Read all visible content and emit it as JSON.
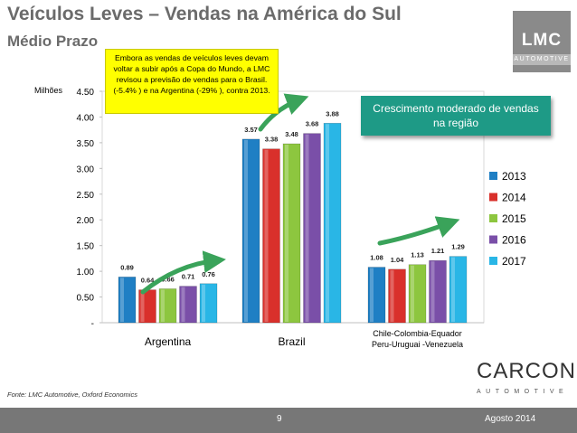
{
  "header": {
    "title": "Veículos Leves – Vendas na América do Sul",
    "subtitle": "Médio Prazo"
  },
  "logo": {
    "name": "LMC",
    "sub": "AUTOMOTIVE"
  },
  "callouts": {
    "yellow": "Embora as vendas de veículos leves devam voltar a subir após a Copa do Mundo, a LMC revisou a previsão de vendas para o Brasil. (-5.4% ) e na Argentina (-29% ), contra 2013.",
    "green": "Crescimento moderado de vendas na região"
  },
  "chart_data": {
    "type": "bar",
    "unit_label": "Milhões",
    "ylim": [
      0,
      4.5
    ],
    "yticks": [
      {
        "value": 0,
        "label": "-"
      },
      {
        "value": 0.5,
        "label": "0.50"
      },
      {
        "value": 1.0,
        "label": "1.00"
      },
      {
        "value": 1.5,
        "label": "1.50"
      },
      {
        "value": 2.0,
        "label": "2.00"
      },
      {
        "value": 2.5,
        "label": "2.50"
      },
      {
        "value": 3.0,
        "label": "3.00"
      },
      {
        "value": 3.5,
        "label": "3.50"
      },
      {
        "value": 4.0,
        "label": "4.00"
      },
      {
        "value": 4.5,
        "label": "4.50"
      }
    ],
    "categories": [
      [
        "Argentina"
      ],
      [
        "Brazil"
      ],
      [
        "Chile-Colombia-Equador",
        "Peru-Uruguai -Venezuela"
      ]
    ],
    "series": [
      {
        "name": "2013",
        "color": "#1f7fc4",
        "values": [
          0.89,
          3.57,
          1.08
        ]
      },
      {
        "name": "2014",
        "color": "#d9302b",
        "values": [
          0.64,
          3.38,
          1.04
        ]
      },
      {
        "name": "2015",
        "color": "#8dc63f",
        "values": [
          0.66,
          3.48,
          1.13
        ]
      },
      {
        "name": "2016",
        "color": "#7a4fa8",
        "values": [
          0.71,
          3.68,
          1.21
        ]
      },
      {
        "name": "2017",
        "color": "#29b6e6",
        "values": [
          0.76,
          3.88,
          1.29
        ]
      }
    ],
    "legend_position": "right",
    "grid": false
  },
  "source": "Fonte: LMC Automotive, Oxford Economics",
  "carcon": {
    "name": "CARCON",
    "sub": "AUTOMOTIVE"
  },
  "footer": {
    "page": "9",
    "date": "Agosto 2014"
  }
}
